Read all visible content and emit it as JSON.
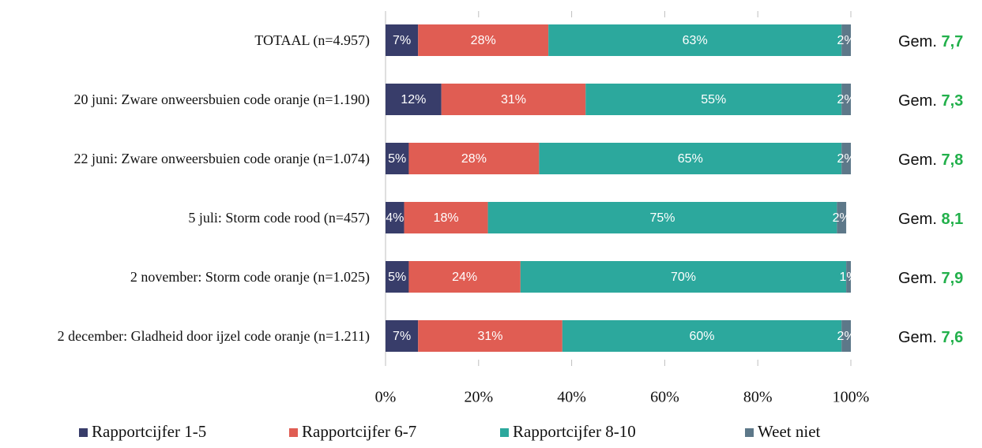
{
  "chart_data": {
    "type": "stacked_bar_horizontal",
    "categories": [
      "TOTAAL (n=4.957)",
      "20 juni: Zware onweersbuien code oranje (n=1.190)",
      "22 juni: Zware onweersbuien code oranje (n=1.074)",
      "5 juli: Storm code rood (n=457)",
      "2 november: Storm code oranje (n=1.025)",
      "2 december: Gladheid door ijzel code oranje (n=1.211)"
    ],
    "series": [
      {
        "name": "Rapportcijfer 1-5",
        "color": "#383d6a",
        "values": [
          7,
          12,
          5,
          4,
          5,
          7
        ],
        "value_labels": [
          "7%",
          "12%",
          "5%",
          "4%",
          "5%",
          "7%"
        ]
      },
      {
        "name": "Rapportcijfer 6-7",
        "color": "#e05d53",
        "values": [
          28,
          31,
          28,
          18,
          24,
          31
        ],
        "value_labels": [
          "28%",
          "31%",
          "28%",
          "18%",
          "24%",
          "31%"
        ]
      },
      {
        "name": "Rapportcijfer 8-10",
        "color": "#2ca89d",
        "values": [
          63,
          55,
          65,
          75,
          70,
          60
        ],
        "value_labels": [
          "63%",
          "55%",
          "65%",
          "75%",
          "70%",
          "60%"
        ]
      },
      {
        "name": "Weet niet",
        "color": "#5d7889",
        "values": [
          2,
          2,
          2,
          2,
          1,
          2
        ],
        "value_labels": [
          "2%",
          "2%",
          "2%",
          "2%",
          "1%",
          "2%"
        ]
      }
    ],
    "average_prefix": "Gem.",
    "averages": [
      {
        "value": 7.7,
        "label": "7,7"
      },
      {
        "value": 7.3,
        "label": "7,3"
      },
      {
        "value": 7.8,
        "label": "7,8"
      },
      {
        "value": 8.1,
        "label": "8,1"
      },
      {
        "value": 7.9,
        "label": "7,9"
      },
      {
        "value": 7.6,
        "label": "7,6"
      }
    ],
    "average_color": "#22b04b",
    "xlim": [
      0,
      100
    ],
    "xticks": [
      {
        "value": 0,
        "label": "0%"
      },
      {
        "value": 20,
        "label": "20%"
      },
      {
        "value": 40,
        "label": "40%"
      },
      {
        "value": 60,
        "label": "60%"
      },
      {
        "value": 80,
        "label": "80%"
      },
      {
        "value": 100,
        "label": "100%"
      }
    ],
    "legend": "bottom"
  }
}
